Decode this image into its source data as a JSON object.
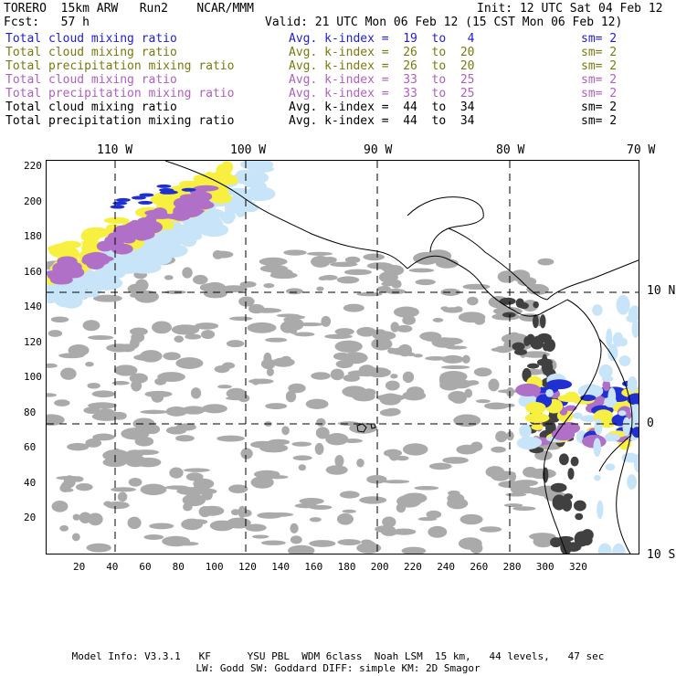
{
  "header": {
    "model": "TORERO  15km ARW   Run2    NCAR/MMM",
    "init": "Init: 12 UTC Sat 04 Feb 12",
    "fcst": "Fcst:   57 h",
    "valid": "Valid: 21 UTC Mon 06 Feb 12 (15 CST Mon 06 Feb 12)"
  },
  "legend": [
    {
      "label": "Total cloud mixing ratio",
      "index": "Avg. k-index =  19  to   4",
      "sm": "sm= 2",
      "color": "#1f1fcc"
    },
    {
      "label": "Total cloud mixing ratio",
      "index": "Avg. k-index =  26  to  20",
      "sm": "sm= 2",
      "color": "#7a7a10"
    },
    {
      "label": "Total precipitation mixing ratio",
      "index": "Avg. k-index =  26  to  20",
      "sm": "sm= 2",
      "color": "#7a7a10"
    },
    {
      "label": "Total cloud mixing ratio",
      "index": "Avg. k-index =  33  to  25",
      "sm": "sm= 2",
      "color": "#b060c0"
    },
    {
      "label": "Total precipitation mixing ratio",
      "index": "Avg. k-index =  33  to  25",
      "sm": "sm= 2",
      "color": "#b060c0"
    },
    {
      "label": "Total cloud mixing ratio",
      "index": "Avg. k-index =  44  to  34",
      "sm": "sm= 2",
      "color": "#000000"
    },
    {
      "label": "Total precipitation mixing ratio",
      "index": "Avg. k-index =  44  to  34",
      "sm": "sm= 2",
      "color": "#000000"
    }
  ],
  "map": {
    "lon_labels": [
      "110 W",
      "100 W",
      "90 W",
      "80 W",
      "70 W"
    ],
    "lat_labels": [
      "10 N",
      "0",
      "10 S"
    ],
    "y_ticks": [
      "220",
      "200",
      "180",
      "160",
      "140",
      "120",
      "100",
      "80",
      "60",
      "40",
      "20"
    ],
    "x_ticks": [
      "20",
      "40",
      "60",
      "80",
      "100",
      "120",
      "140",
      "160",
      "180",
      "200",
      "220",
      "240",
      "260",
      "280",
      "300",
      "320"
    ],
    "colors": {
      "cloud_light": "#c8e4f8",
      "cloud_blue": "#2030d0",
      "yellow": "#f8f040",
      "purple": "#b070c8",
      "gray": "#aaaaaa",
      "dark_gray": "#404040",
      "coast": "#000000"
    }
  },
  "footer": {
    "line1": "Model Info: V3.3.1   KF      YSU PBL  WDM 6class  Noah LSM  15 km,   44 levels,   47 sec",
    "line2": "LW: Godd SW: Goddard DIFF: simple KM: 2D Smagor"
  }
}
